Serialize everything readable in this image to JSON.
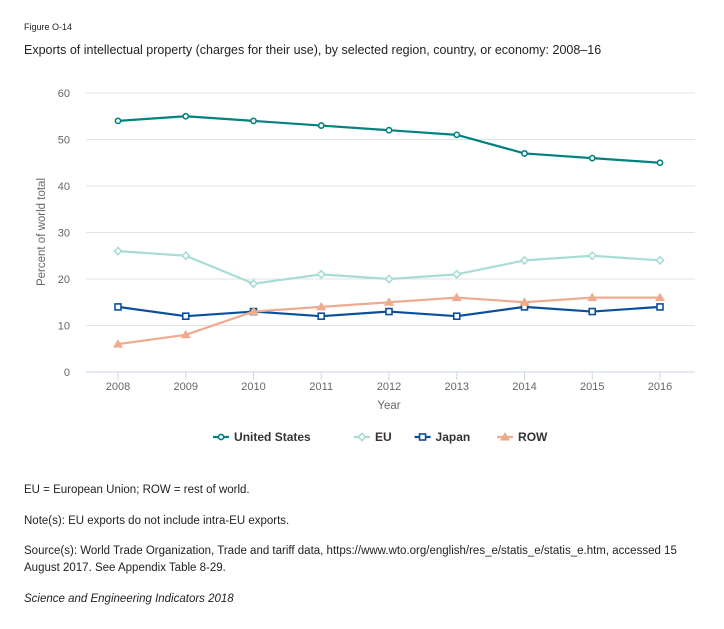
{
  "figure": {
    "label": "Figure O-14",
    "title": "Exports of intellectual property (charges for their use), by selected region, country, or economy: 2008–16"
  },
  "chart_data": {
    "type": "line",
    "title": "Exports of intellectual property (charges for their use), by selected region, country, or economy: 2008–16",
    "xlabel": "Year",
    "ylabel": "Percent of world total",
    "x": [
      "2008",
      "2009",
      "2010",
      "2011",
      "2012",
      "2013",
      "2014",
      "2015",
      "2016"
    ],
    "ylim": [
      0,
      60
    ],
    "yticks": [
      0,
      10,
      20,
      30,
      40,
      50,
      60
    ],
    "grid": true,
    "legend_position": "bottom-center",
    "series": [
      {
        "name": "United States",
        "color": "#00827f",
        "marker": "circle",
        "values": [
          54,
          55,
          54,
          53,
          52,
          51,
          47,
          46,
          45
        ]
      },
      {
        "name": "EU",
        "color": "#a8dcd6",
        "marker": "diamond",
        "values": [
          26,
          25,
          19,
          21,
          20,
          21,
          24,
          25,
          24
        ]
      },
      {
        "name": "Japan",
        "color": "#0b4f9c",
        "marker": "square",
        "values": [
          14,
          12,
          13,
          12,
          13,
          12,
          14,
          13,
          14
        ]
      },
      {
        "name": "ROW",
        "color": "#eeab8f",
        "marker": "triangle",
        "values": [
          6,
          8,
          13,
          14,
          15,
          16,
          15,
          16,
          16
        ]
      }
    ]
  },
  "notes": {
    "abbreviations": "EU = European Union; ROW = rest of world.",
    "note": "Note(s): EU exports do not include intra-EU exports.",
    "source": "Source(s): World Trade Organization, Trade and tariff data, https://www.wto.org/english/res_e/statis_e/statis_e.htm, accessed 15 August 2017. See Appendix Table 8-29.",
    "publication": "Science and Engineering Indicators 2018"
  }
}
